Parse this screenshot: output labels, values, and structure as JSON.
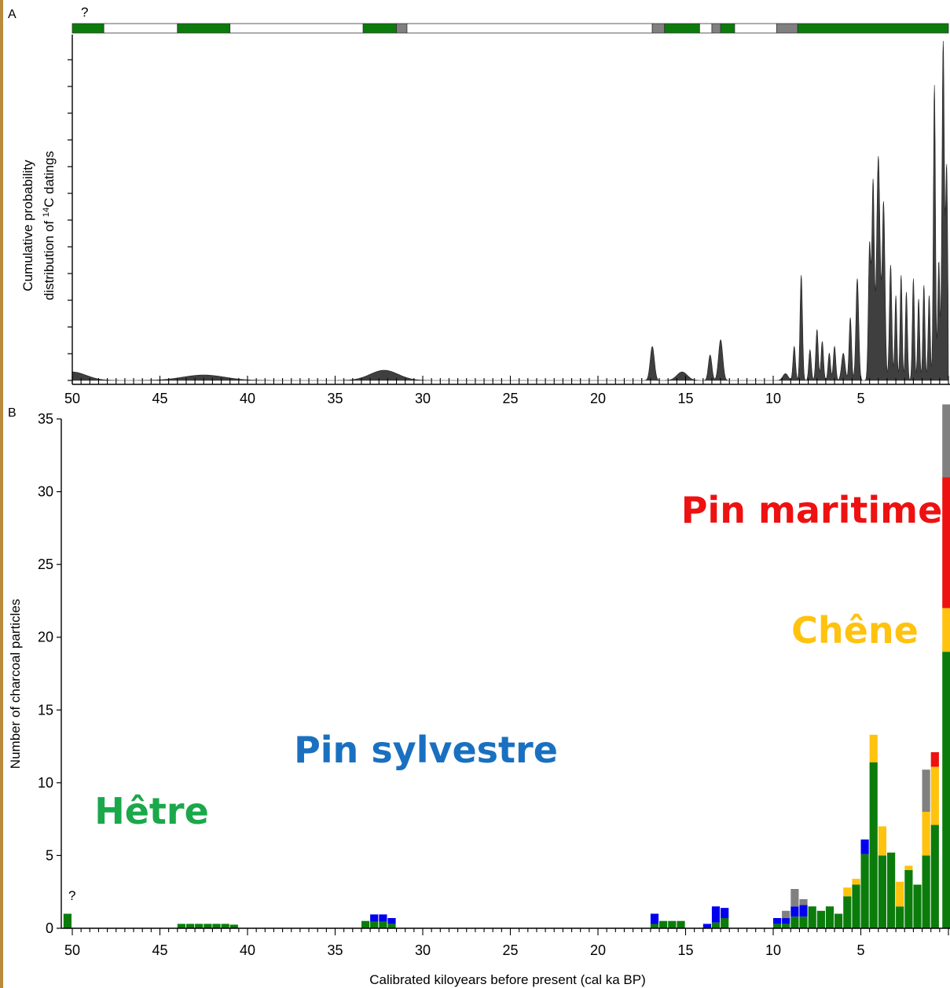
{
  "colors": {
    "beech": "#0b7c0b",
    "scots_pine": "#0000ee",
    "oak": "#ffc20e",
    "maritime_pine": "#ee1111",
    "undetermined": "#808080",
    "curve_fill": "#3f3f3f"
  },
  "panel_a": {
    "letter": "A",
    "question_mark": "?",
    "ylabel_line1": "Cumulative probability",
    "ylabel_line2_pre": "distribution of ",
    "ylabel_sup": "14",
    "ylabel_line2_post": "C datings",
    "presence_bar": [
      {
        "from": 50,
        "to": 48.2,
        "state": "present"
      },
      {
        "from": 48.2,
        "to": 44,
        "state": "absent"
      },
      {
        "from": 44,
        "to": 41,
        "state": "present"
      },
      {
        "from": 41,
        "to": 33.4,
        "state": "absent"
      },
      {
        "from": 33.4,
        "to": 31.5,
        "state": "present"
      },
      {
        "from": 31.5,
        "to": 30.9,
        "state": "unknown"
      },
      {
        "from": 30.9,
        "to": 16.9,
        "state": "absent"
      },
      {
        "from": 16.9,
        "to": 16.2,
        "state": "unknown"
      },
      {
        "from": 16.2,
        "to": 14.2,
        "state": "present"
      },
      {
        "from": 14.2,
        "to": 13.5,
        "state": "absent"
      },
      {
        "from": 13.5,
        "to": 13.0,
        "state": "unknown"
      },
      {
        "from": 13.0,
        "to": 12.2,
        "state": "present"
      },
      {
        "from": 12.2,
        "to": 9.8,
        "state": "absent"
      },
      {
        "from": 9.8,
        "to": 8.6,
        "state": "unknown"
      },
      {
        "from": 8.6,
        "to": 0,
        "state": "present"
      }
    ]
  },
  "panel_b": {
    "letter": "B",
    "ylabel": "Number of charcoal particles",
    "xlabel": "Calibrated kiloyears before present (cal ka BP)",
    "question_mark": "?",
    "labels": {
      "maritime_pine": "Pin maritime",
      "oak": "Chêne",
      "scots_pine": "Pin sylvestre",
      "beech": "Hêtre"
    }
  },
  "chart_data": [
    {
      "type": "area",
      "panel": "A",
      "xlabel": "",
      "ylabel": "Cumulative probability distribution of 14C datings",
      "x_axis_reversed": true,
      "xlim": [
        50,
        0
      ],
      "xticks": [
        50,
        45,
        40,
        35,
        30,
        25,
        20,
        15,
        10,
        5
      ],
      "ylim": [
        0,
        100
      ],
      "peaks": [
        {
          "x": 50.0,
          "y": 2.5,
          "w": 0.8
        },
        {
          "x": 42.5,
          "y": 1.6,
          "w": 1.2
        },
        {
          "x": 32.2,
          "y": 3.0,
          "w": 0.8
        },
        {
          "x": 16.9,
          "y": 10.0,
          "w": 0.12
        },
        {
          "x": 15.2,
          "y": 2.5,
          "w": 0.3
        },
        {
          "x": 13.6,
          "y": 7.5,
          "w": 0.1
        },
        {
          "x": 13.0,
          "y": 12.0,
          "w": 0.12
        },
        {
          "x": 9.3,
          "y": 2.0,
          "w": 0.15
        },
        {
          "x": 8.8,
          "y": 10.0,
          "w": 0.07
        },
        {
          "x": 8.4,
          "y": 31.0,
          "w": 0.07
        },
        {
          "x": 7.9,
          "y": 9.0,
          "w": 0.07
        },
        {
          "x": 7.5,
          "y": 15.0,
          "w": 0.07
        },
        {
          "x": 7.2,
          "y": 11.5,
          "w": 0.07
        },
        {
          "x": 6.8,
          "y": 8.0,
          "w": 0.07
        },
        {
          "x": 6.5,
          "y": 10.0,
          "w": 0.07
        },
        {
          "x": 6.0,
          "y": 8.0,
          "w": 0.1
        },
        {
          "x": 5.6,
          "y": 18.5,
          "w": 0.07
        },
        {
          "x": 5.2,
          "y": 30.0,
          "w": 0.08
        },
        {
          "x": 4.5,
          "y": 40.0,
          "w": 0.07
        },
        {
          "x": 4.3,
          "y": 58.0,
          "w": 0.07
        },
        {
          "x": 4.0,
          "y": 66.0,
          "w": 0.1
        },
        {
          "x": 3.7,
          "y": 52.0,
          "w": 0.08
        },
        {
          "x": 3.3,
          "y": 34.0,
          "w": 0.07
        },
        {
          "x": 3.0,
          "y": 25.0,
          "w": 0.06
        },
        {
          "x": 2.7,
          "y": 31.0,
          "w": 0.06
        },
        {
          "x": 2.4,
          "y": 26.0,
          "w": 0.06
        },
        {
          "x": 2.0,
          "y": 30.0,
          "w": 0.06
        },
        {
          "x": 1.7,
          "y": 24.0,
          "w": 0.06
        },
        {
          "x": 1.4,
          "y": 28.0,
          "w": 0.06
        },
        {
          "x": 1.1,
          "y": 25.0,
          "w": 0.06
        },
        {
          "x": 0.8,
          "y": 87.0,
          "w": 0.06
        },
        {
          "x": 0.55,
          "y": 35.0,
          "w": 0.06
        },
        {
          "x": 0.3,
          "y": 100.0,
          "w": 0.07
        },
        {
          "x": 0.1,
          "y": 62.0,
          "w": 0.06
        }
      ]
    },
    {
      "type": "bar",
      "panel": "B",
      "stacked": true,
      "xlabel": "Calibrated kiloyears before present (cal ka BP)",
      "ylabel": "Number of charcoal particles",
      "x_axis_reversed": true,
      "xlim": [
        50,
        0
      ],
      "xticks": [
        50,
        45,
        40,
        35,
        30,
        25,
        20,
        15,
        10,
        5
      ],
      "ylim": [
        0,
        35
      ],
      "yticks": [
        0,
        5,
        10,
        15,
        20,
        25,
        30,
        35
      ],
      "bin_width_ka": 0.5,
      "series": [
        {
          "name": "Hêtre",
          "color_key": "beech"
        },
        {
          "name": "Pin sylvestre",
          "color_key": "scots_pine"
        },
        {
          "name": "Chêne",
          "color_key": "oak"
        },
        {
          "name": "Pin maritime",
          "color_key": "maritime_pine"
        },
        {
          "color_key": "undetermined"
        }
      ],
      "bars": [
        {
          "x": 50.25,
          "beech": 1
        },
        {
          "x": 43.75,
          "beech": 0.3
        },
        {
          "x": 43.25,
          "beech": 0.3
        },
        {
          "x": 42.75,
          "beech": 0.3
        },
        {
          "x": 42.25,
          "beech": 0.3
        },
        {
          "x": 41.75,
          "beech": 0.3
        },
        {
          "x": 41.25,
          "beech": 0.3
        },
        {
          "x": 40.75,
          "beech": 0.25
        },
        {
          "x": 33.25,
          "beech": 0.5
        },
        {
          "x": 32.75,
          "beech": 0.45,
          "scots_pine": 0.5
        },
        {
          "x": 32.25,
          "beech": 0.45,
          "scots_pine": 0.5
        },
        {
          "x": 31.75,
          "beech": 0.3,
          "scots_pine": 0.4
        },
        {
          "x": 16.75,
          "beech": 0.3,
          "scots_pine": 0.7
        },
        {
          "x": 16.25,
          "beech": 0.5
        },
        {
          "x": 15.75,
          "beech": 0.5
        },
        {
          "x": 15.25,
          "beech": 0.5
        },
        {
          "x": 13.75,
          "scots_pine": 0.3
        },
        {
          "x": 13.25,
          "beech": 0.4,
          "scots_pine": 1.1
        },
        {
          "x": 12.75,
          "beech": 0.7,
          "scots_pine": 0.7
        },
        {
          "x": 9.75,
          "beech": 0.3,
          "scots_pine": 0.4
        },
        {
          "x": 9.25,
          "beech": 0.3,
          "scots_pine": 0.4,
          "undetermined": 0.5
        },
        {
          "x": 8.75,
          "beech": 0.8,
          "scots_pine": 0.7,
          "undetermined": 1.2
        },
        {
          "x": 8.25,
          "beech": 0.8,
          "scots_pine": 0.8,
          "undetermined": 0.4
        },
        {
          "x": 7.75,
          "beech": 1.5
        },
        {
          "x": 7.25,
          "beech": 1.2
        },
        {
          "x": 6.75,
          "beech": 1.5
        },
        {
          "x": 6.25,
          "beech": 1.0
        },
        {
          "x": 5.75,
          "beech": 2.2,
          "oak": 0.6
        },
        {
          "x": 5.25,
          "beech": 3.0,
          "oak": 0.4
        },
        {
          "x": 4.75,
          "beech": 5.1,
          "scots_pine": 1.0
        },
        {
          "x": 4.25,
          "beech": 11.4,
          "oak": 1.9
        },
        {
          "x": 3.75,
          "beech": 5.0,
          "oak": 2.0
        },
        {
          "x": 3.25,
          "beech": 5.2
        },
        {
          "x": 2.75,
          "beech": 1.5,
          "oak": 1.7
        },
        {
          "x": 2.25,
          "beech": 4.0,
          "oak": 0.3
        },
        {
          "x": 1.75,
          "beech": 3.0
        },
        {
          "x": 1.25,
          "beech": 5.0,
          "oak": 3.0,
          "undetermined": 2.9
        },
        {
          "x": 0.75,
          "beech": 7.1,
          "oak": 4.0,
          "maritime_pine": 1.0
        },
        {
          "x": 0.1,
          "beech": 19.0,
          "oak": 3.0,
          "maritime_pine": 9.0,
          "undetermined": 5.0
        }
      ]
    }
  ]
}
